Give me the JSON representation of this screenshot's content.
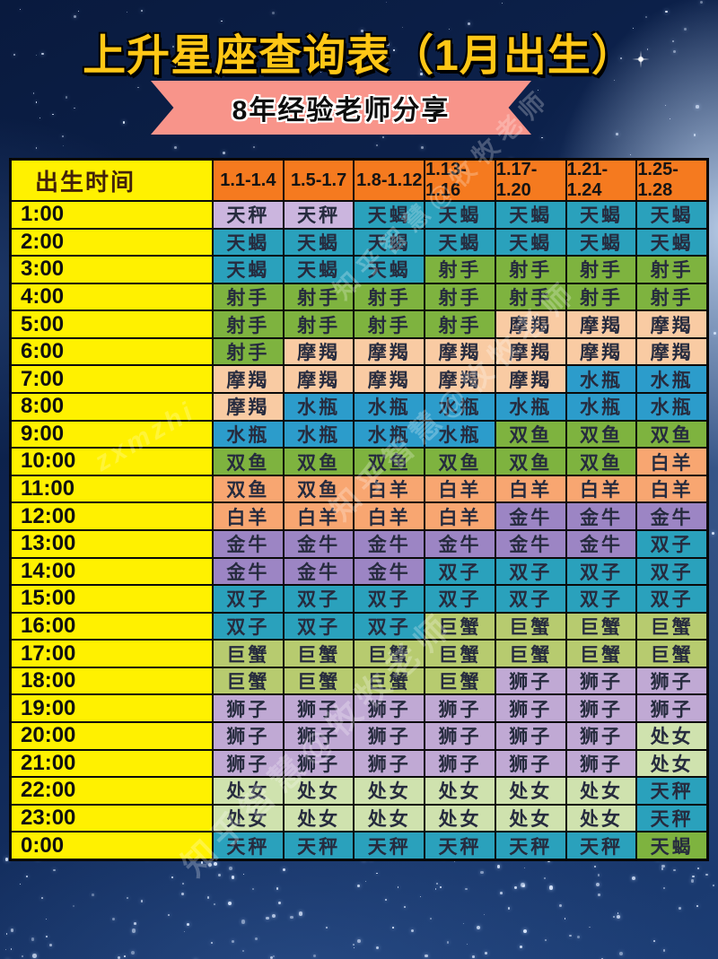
{
  "page": {
    "title": "上升星座查询表（1月出生）",
    "banner": "8年经验老师分享"
  },
  "watermarks": {
    "cn": "知乎智慧@牧牧老师",
    "latin": "zxmzhi"
  },
  "palette": {
    "background_navy": "#0e2552",
    "title_yellow": "#ffc716",
    "ribbon_pink": "#f8948a",
    "time_column_yellow": "#fff100",
    "header_orange": "#f57a1f",
    "lav": "#cbb5de",
    "lav2": "#c0a9d4",
    "teal": "#2aa1bc",
    "blue": "#2c9ccb",
    "green": "#7eb33f",
    "peach": "#f9cba3",
    "salmon": "#f8a671",
    "purple": "#9c85c4",
    "olive": "#b7cb6f",
    "lgreen": "#cfe2ae",
    "border_black": "#0a0a0a"
  },
  "table": {
    "corner_label": "出生时间",
    "date_columns": [
      "1.1-1.4",
      "1.5-1.7",
      "1.8-1.12",
      "1.13-1.16",
      "1.17-1.20",
      "1.21-1.24",
      "1.25-1.28"
    ],
    "rows": [
      {
        "time": "1:00",
        "cells": [
          [
            "天秤",
            "lav"
          ],
          [
            "天秤",
            "lav"
          ],
          [
            "天蝎",
            "teal"
          ],
          [
            "天蝎",
            "teal"
          ],
          [
            "天蝎",
            "teal"
          ],
          [
            "天蝎",
            "teal"
          ],
          [
            "天蝎",
            "teal"
          ]
        ]
      },
      {
        "time": "2:00",
        "cells": [
          [
            "天蝎",
            "teal"
          ],
          [
            "天蝎",
            "teal"
          ],
          [
            "天蝎",
            "teal"
          ],
          [
            "天蝎",
            "teal"
          ],
          [
            "天蝎",
            "teal"
          ],
          [
            "天蝎",
            "teal"
          ],
          [
            "天蝎",
            "teal"
          ]
        ]
      },
      {
        "time": "3:00",
        "cells": [
          [
            "天蝎",
            "teal"
          ],
          [
            "天蝎",
            "teal"
          ],
          [
            "天蝎",
            "teal"
          ],
          [
            "射手",
            "green"
          ],
          [
            "射手",
            "green"
          ],
          [
            "射手",
            "green"
          ],
          [
            "射手",
            "green"
          ]
        ]
      },
      {
        "time": "4:00",
        "cells": [
          [
            "射手",
            "green"
          ],
          [
            "射手",
            "green"
          ],
          [
            "射手",
            "green"
          ],
          [
            "射手",
            "green"
          ],
          [
            "射手",
            "green"
          ],
          [
            "射手",
            "green"
          ],
          [
            "射手",
            "green"
          ]
        ]
      },
      {
        "time": "5:00",
        "cells": [
          [
            "射手",
            "green"
          ],
          [
            "射手",
            "green"
          ],
          [
            "射手",
            "green"
          ],
          [
            "射手",
            "green"
          ],
          [
            "摩羯",
            "peach"
          ],
          [
            "摩羯",
            "peach"
          ],
          [
            "摩羯",
            "peach"
          ]
        ]
      },
      {
        "time": "6:00",
        "cells": [
          [
            "射手",
            "green"
          ],
          [
            "摩羯",
            "peach"
          ],
          [
            "摩羯",
            "peach"
          ],
          [
            "摩羯",
            "peach"
          ],
          [
            "摩羯",
            "peach"
          ],
          [
            "摩羯",
            "peach"
          ],
          [
            "摩羯",
            "peach"
          ]
        ]
      },
      {
        "time": "7:00",
        "cells": [
          [
            "摩羯",
            "peach"
          ],
          [
            "摩羯",
            "peach"
          ],
          [
            "摩羯",
            "peach"
          ],
          [
            "摩羯",
            "peach"
          ],
          [
            "摩羯",
            "peach"
          ],
          [
            "水瓶",
            "blue"
          ],
          [
            "水瓶",
            "blue"
          ]
        ]
      },
      {
        "time": "8:00",
        "cells": [
          [
            "摩羯",
            "peach"
          ],
          [
            "水瓶",
            "blue"
          ],
          [
            "水瓶",
            "blue"
          ],
          [
            "水瓶",
            "blue"
          ],
          [
            "水瓶",
            "blue"
          ],
          [
            "水瓶",
            "blue"
          ],
          [
            "水瓶",
            "blue"
          ]
        ]
      },
      {
        "time": "9:00",
        "cells": [
          [
            "水瓶",
            "blue"
          ],
          [
            "水瓶",
            "blue"
          ],
          [
            "水瓶",
            "blue"
          ],
          [
            "水瓶",
            "blue"
          ],
          [
            "双鱼",
            "green"
          ],
          [
            "双鱼",
            "green"
          ],
          [
            "双鱼",
            "green"
          ]
        ]
      },
      {
        "time": "10:00",
        "cells": [
          [
            "双鱼",
            "green"
          ],
          [
            "双鱼",
            "green"
          ],
          [
            "双鱼",
            "green"
          ],
          [
            "双鱼",
            "green"
          ],
          [
            "双鱼",
            "green"
          ],
          [
            "双鱼",
            "green"
          ],
          [
            "白羊",
            "salmon"
          ]
        ]
      },
      {
        "time": "11:00",
        "cells": [
          [
            "双鱼",
            "salmon"
          ],
          [
            "双鱼",
            "salmon"
          ],
          [
            "白羊",
            "salmon"
          ],
          [
            "白羊",
            "salmon"
          ],
          [
            "白羊",
            "salmon"
          ],
          [
            "白羊",
            "salmon"
          ],
          [
            "白羊",
            "salmon"
          ]
        ]
      },
      {
        "time": "12:00",
        "cells": [
          [
            "白羊",
            "salmon"
          ],
          [
            "白羊",
            "salmon"
          ],
          [
            "白羊",
            "salmon"
          ],
          [
            "白羊",
            "salmon"
          ],
          [
            "金牛",
            "purple"
          ],
          [
            "金牛",
            "purple"
          ],
          [
            "金牛",
            "purple"
          ]
        ]
      },
      {
        "time": "13:00",
        "cells": [
          [
            "金牛",
            "purple"
          ],
          [
            "金牛",
            "purple"
          ],
          [
            "金牛",
            "purple"
          ],
          [
            "金牛",
            "purple"
          ],
          [
            "金牛",
            "purple"
          ],
          [
            "金牛",
            "purple"
          ],
          [
            "双子",
            "teal"
          ]
        ]
      },
      {
        "time": "14:00",
        "cells": [
          [
            "金牛",
            "purple"
          ],
          [
            "金牛",
            "purple"
          ],
          [
            "金牛",
            "purple"
          ],
          [
            "双子",
            "teal"
          ],
          [
            "双子",
            "teal"
          ],
          [
            "双子",
            "teal"
          ],
          [
            "双子",
            "teal"
          ]
        ]
      },
      {
        "time": "15:00",
        "cells": [
          [
            "双子",
            "teal"
          ],
          [
            "双子",
            "teal"
          ],
          [
            "双子",
            "teal"
          ],
          [
            "双子",
            "teal"
          ],
          [
            "双子",
            "teal"
          ],
          [
            "双子",
            "teal"
          ],
          [
            "双子",
            "teal"
          ]
        ]
      },
      {
        "time": "16:00",
        "cells": [
          [
            "双子",
            "teal"
          ],
          [
            "双子",
            "teal"
          ],
          [
            "双子",
            "teal"
          ],
          [
            "巨蟹",
            "olive"
          ],
          [
            "巨蟹",
            "olive"
          ],
          [
            "巨蟹",
            "olive"
          ],
          [
            "巨蟹",
            "olive"
          ]
        ]
      },
      {
        "time": "17:00",
        "cells": [
          [
            "巨蟹",
            "olive"
          ],
          [
            "巨蟹",
            "olive"
          ],
          [
            "巨蟹",
            "olive"
          ],
          [
            "巨蟹",
            "olive"
          ],
          [
            "巨蟹",
            "olive"
          ],
          [
            "巨蟹",
            "olive"
          ],
          [
            "巨蟹",
            "olive"
          ]
        ]
      },
      {
        "time": "18:00",
        "cells": [
          [
            "巨蟹",
            "olive"
          ],
          [
            "巨蟹",
            "olive"
          ],
          [
            "巨蟹",
            "olive"
          ],
          [
            "巨蟹",
            "olive"
          ],
          [
            "狮子",
            "lav2"
          ],
          [
            "狮子",
            "lav2"
          ],
          [
            "狮子",
            "lav2"
          ]
        ]
      },
      {
        "time": "19:00",
        "cells": [
          [
            "狮子",
            "lav2"
          ],
          [
            "狮子",
            "lav2"
          ],
          [
            "狮子",
            "lav2"
          ],
          [
            "狮子",
            "lav2"
          ],
          [
            "狮子",
            "lav2"
          ],
          [
            "狮子",
            "lav2"
          ],
          [
            "狮子",
            "lav2"
          ]
        ]
      },
      {
        "time": "20:00",
        "cells": [
          [
            "狮子",
            "lav2"
          ],
          [
            "狮子",
            "lav2"
          ],
          [
            "狮子",
            "lav2"
          ],
          [
            "狮子",
            "lav2"
          ],
          [
            "狮子",
            "lav2"
          ],
          [
            "狮子",
            "lav2"
          ],
          [
            "处女",
            "lgreen"
          ]
        ]
      },
      {
        "time": "21:00",
        "cells": [
          [
            "狮子",
            "lav2"
          ],
          [
            "狮子",
            "lav2"
          ],
          [
            "狮子",
            "lav2"
          ],
          [
            "狮子",
            "lav2"
          ],
          [
            "狮子",
            "lav2"
          ],
          [
            "狮子",
            "lav2"
          ],
          [
            "处女",
            "lgreen"
          ]
        ]
      },
      {
        "time": "22:00",
        "cells": [
          [
            "处女",
            "lgreen"
          ],
          [
            "处女",
            "lgreen"
          ],
          [
            "处女",
            "lgreen"
          ],
          [
            "处女",
            "lgreen"
          ],
          [
            "处女",
            "lgreen"
          ],
          [
            "处女",
            "lgreen"
          ],
          [
            "天秤",
            "teal"
          ]
        ]
      },
      {
        "time": "23:00",
        "cells": [
          [
            "处女",
            "lgreen"
          ],
          [
            "处女",
            "lgreen"
          ],
          [
            "处女",
            "lgreen"
          ],
          [
            "处女",
            "lgreen"
          ],
          [
            "处女",
            "lgreen"
          ],
          [
            "处女",
            "lgreen"
          ],
          [
            "天秤",
            "teal"
          ]
        ]
      },
      {
        "time": "0:00",
        "cells": [
          [
            "天秤",
            "teal"
          ],
          [
            "天秤",
            "teal"
          ],
          [
            "天秤",
            "teal"
          ],
          [
            "天秤",
            "teal"
          ],
          [
            "天秤",
            "teal"
          ],
          [
            "天秤",
            "teal"
          ],
          [
            "天蝎",
            "green"
          ]
        ]
      }
    ]
  }
}
